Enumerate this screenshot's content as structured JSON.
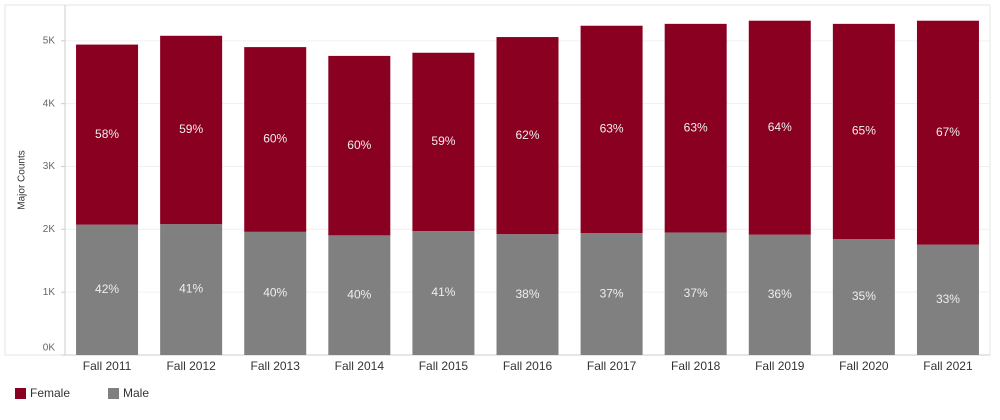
{
  "chart_data": {
    "type": "stacked-bar",
    "y_label": "Major Counts",
    "categories": [
      "Fall 2011",
      "Fall 2012",
      "Fall 2013",
      "Fall 2014",
      "Fall 2015",
      "Fall 2016",
      "Fall 2017",
      "Fall 2018",
      "Fall 2019",
      "Fall 2020",
      "Fall 2021"
    ],
    "series": [
      {
        "name": "Male",
        "color": "#808080",
        "values": [
          2075,
          2083,
          1960,
          1904,
          1972,
          1923,
          1939,
          1950,
          1915,
          1845,
          1756
        ],
        "percent_labels": [
          "42%",
          "41%",
          "40%",
          "40%",
          "41%",
          "38%",
          "37%",
          "37%",
          "36%",
          "35%",
          "33%"
        ]
      },
      {
        "name": "Female",
        "color": "#8a0020",
        "values": [
          2865,
          2997,
          2940,
          2856,
          2838,
          3137,
          3301,
          3320,
          3405,
          3425,
          3564
        ],
        "percent_labels": [
          "58%",
          "59%",
          "60%",
          "60%",
          "59%",
          "62%",
          "63%",
          "63%",
          "64%",
          "65%",
          "67%"
        ]
      }
    ],
    "legend_order": [
      "Female",
      "Male"
    ],
    "ylim": [
      0,
      5570
    ],
    "yticks": [
      {
        "value": 0,
        "label": "0K"
      },
      {
        "value": 1000,
        "label": "1K"
      },
      {
        "value": 2000,
        "label": "2K"
      },
      {
        "value": 3000,
        "label": "3K"
      },
      {
        "value": 4000,
        "label": "4K"
      },
      {
        "value": 5000,
        "label": "5K"
      }
    ],
    "grid": true
  }
}
